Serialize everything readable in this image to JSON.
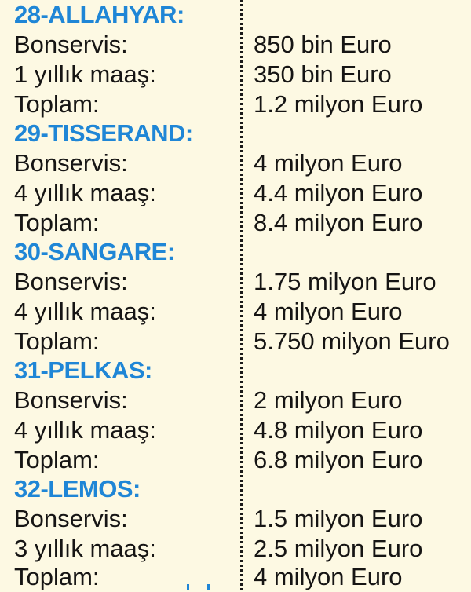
{
  "players": [
    {
      "name": "28-ALLAHYAR:",
      "rows": [
        {
          "label": "Bonservis:",
          "value": "850 bin Euro"
        },
        {
          "label": "1 yıllık maaş:",
          "value": "350 bin Euro"
        },
        {
          "label": "Toplam:",
          "value": "1.2 milyon Euro"
        }
      ]
    },
    {
      "name": "29-TISSERAND:",
      "rows": [
        {
          "label": "Bonservis:",
          "value": "4 milyon Euro"
        },
        {
          "label": "4 yıllık maaş:",
          "value": "4.4 milyon Euro"
        },
        {
          "label": "Toplam:",
          "value": "8.4 milyon Euro"
        }
      ]
    },
    {
      "name": "30-SANGARE:",
      "rows": [
        {
          "label": "Bonservis:",
          "value": "1.75 milyon Euro"
        },
        {
          "label": "4 yıllık maaş:",
          "value": "4 milyon Euro"
        },
        {
          "label": "Toplam:",
          "value": "5.750 milyon Euro"
        }
      ]
    },
    {
      "name": "31-PELKAS:",
      "rows": [
        {
          "label": "Bonservis:",
          "value": "2 milyon Euro"
        },
        {
          "label": "4 yıllık maaş:",
          "value": "4.8 milyon Euro"
        },
        {
          "label": "Toplam:",
          "value": "6.8 milyon Euro"
        }
      ]
    },
    {
      "name": "32-LEMOS:",
      "rows": [
        {
          "label": "Bonservis:",
          "value": "1.5 milyon Euro"
        },
        {
          "label": "3 yıllık maaş:",
          "value": "2.5 milyon Euro"
        },
        {
          "label": "Toplam:",
          "value": "4 milyon Euro"
        }
      ]
    }
  ],
  "colors": {
    "background": "#fdf9e3",
    "name": "#1f86d6",
    "text": "#161514",
    "divider": "#1a1a1a"
  }
}
